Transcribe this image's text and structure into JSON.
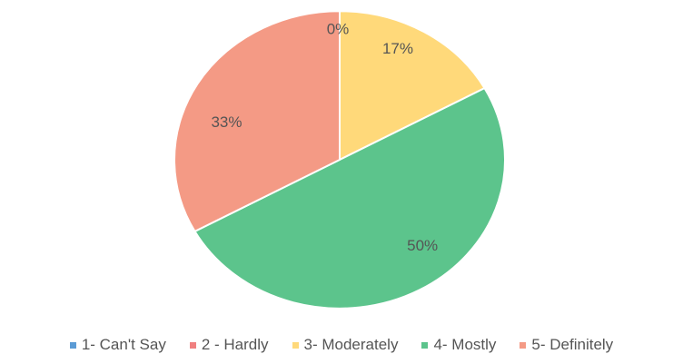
{
  "chart_data": {
    "type": "pie",
    "categories": [
      "1- Can't Say",
      "2 - Hardly",
      "3- Moderately",
      "4- Mostly",
      "5- Definitely"
    ],
    "values": [
      0,
      0,
      17,
      50,
      33
    ],
    "data_labels": [
      "0%",
      "",
      "17%",
      "50%",
      "33%"
    ],
    "colors": [
      "#5b9bd5",
      "#f08080",
      "#ffd97a",
      "#5cc48c",
      "#f49a85"
    ],
    "start": "top, clockwise",
    "legend_position": "bottom"
  }
}
